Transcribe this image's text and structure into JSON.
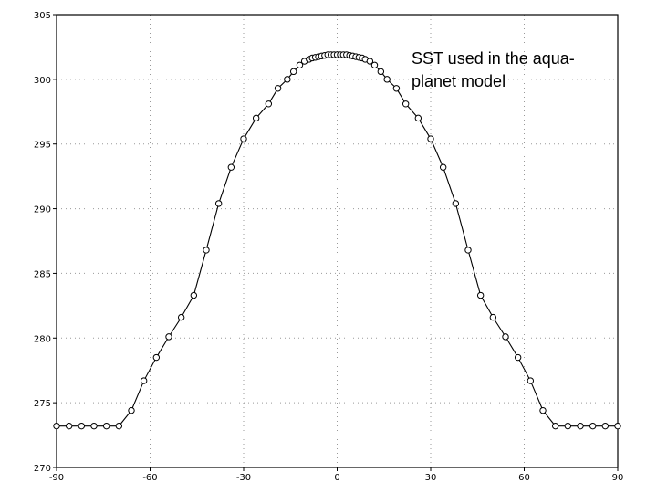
{
  "chart_data": {
    "type": "line",
    "title": "",
    "xlabel": "",
    "ylabel": "",
    "xlim": [
      -90,
      90
    ],
    "ylim": [
      270,
      305
    ],
    "x_ticks": [
      -90,
      -60,
      -30,
      0,
      30,
      60,
      90
    ],
    "x_tick_labels": [
      "-90",
      "-60",
      "-30",
      "0",
      "30",
      "60",
      "90"
    ],
    "y_ticks": [
      270,
      275,
      280,
      285,
      290,
      295,
      300,
      305
    ],
    "y_tick_labels": [
      "270",
      "275",
      "280",
      "285",
      "290",
      "295",
      "300",
      "305"
    ],
    "grid": true,
    "annotation": {
      "line1": "SST used in the aqua-",
      "line2": "planet model"
    },
    "series": [
      {
        "marker": "open-circle",
        "x": [
          -90,
          -86,
          -82,
          -78,
          -74,
          -70,
          -66,
          -62,
          -58,
          -54,
          -50,
          -46,
          -42,
          -38,
          -34,
          -30,
          -26,
          -22,
          -19,
          -16,
          -14,
          -12,
          -10.5,
          -9,
          -8,
          -7,
          -6,
          -5,
          -4,
          -3,
          -2,
          -1,
          0,
          1,
          2,
          3,
          4,
          5,
          6,
          7,
          8,
          9,
          10.5,
          12,
          14,
          16,
          19,
          22,
          26,
          30,
          34,
          38,
          42,
          46,
          50,
          54,
          58,
          62,
          66,
          70,
          74,
          78,
          82,
          86,
          90
        ],
        "y": [
          273.2,
          273.2,
          273.2,
          273.2,
          273.2,
          273.2,
          274.4,
          276.7,
          278.5,
          280.1,
          281.6,
          283.3,
          286.8,
          290.4,
          293.2,
          295.4,
          297.0,
          298.1,
          299.3,
          300.0,
          300.6,
          301.1,
          301.4,
          301.55,
          301.65,
          301.7,
          301.75,
          301.8,
          301.85,
          301.9,
          301.9,
          301.9,
          301.9,
          301.9,
          301.9,
          301.9,
          301.85,
          301.8,
          301.75,
          301.7,
          301.65,
          301.55,
          301.4,
          301.1,
          300.6,
          300.0,
          299.3,
          298.1,
          297.0,
          295.4,
          293.2,
          290.4,
          286.8,
          283.3,
          281.6,
          280.1,
          278.5,
          276.7,
          274.4,
          273.2,
          273.2,
          273.2,
          273.2,
          273.2,
          273.2
        ]
      }
    ]
  }
}
